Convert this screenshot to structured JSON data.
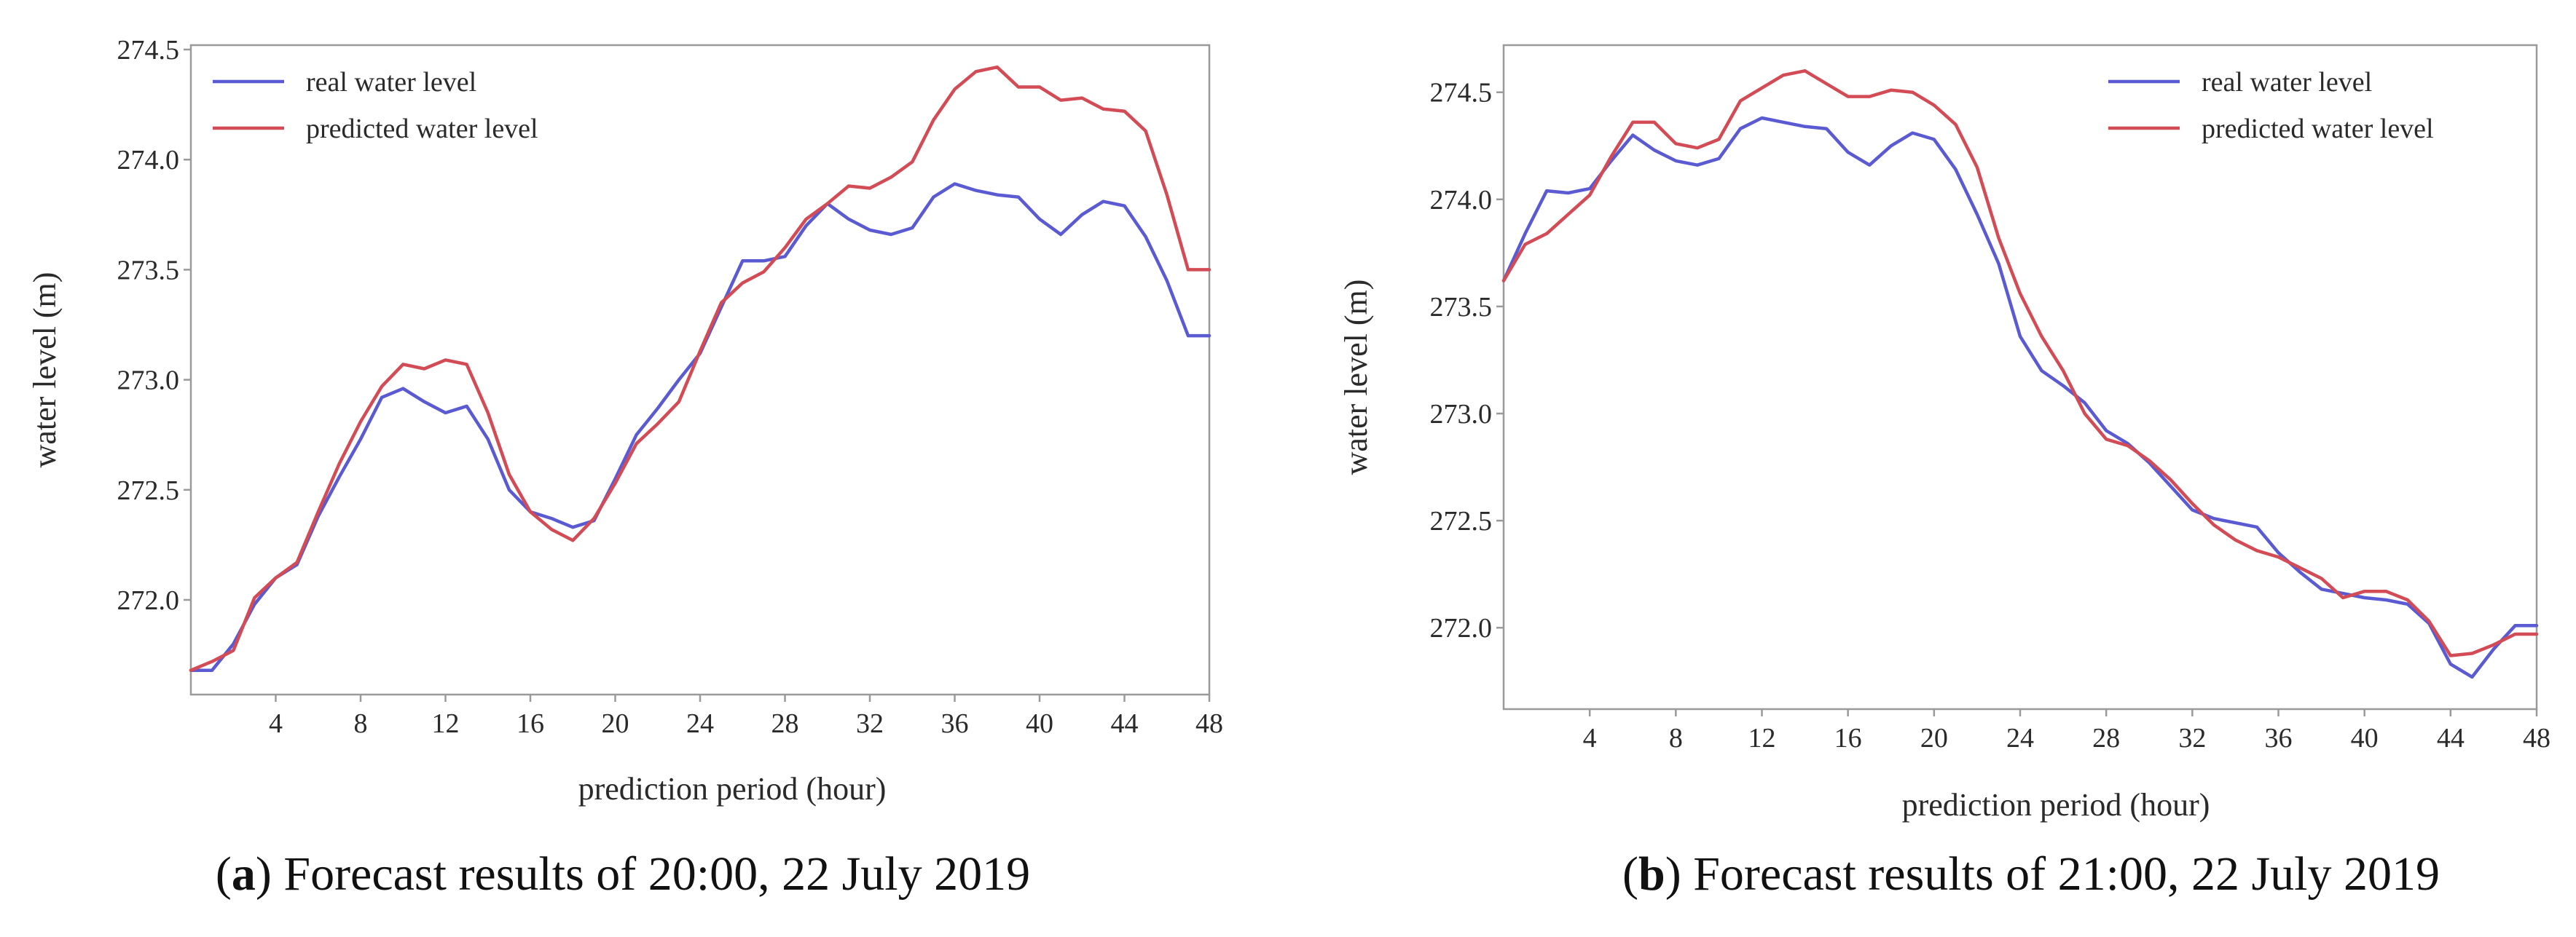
{
  "colors": {
    "real": "#5a5ad2",
    "predicted": "#d24b55"
  },
  "chart_data": [
    {
      "type": "line",
      "panel_letter": "a",
      "caption_rest": " Forecast results of 20:00, 22 July 2019",
      "xlabel": "prediction period (hour)",
      "ylabel": "water level (m)",
      "xlim": [
        0,
        48
      ],
      "ylim": [
        271.57,
        274.52
      ],
      "x_ticks": [
        4,
        8,
        12,
        16,
        20,
        24,
        28,
        32,
        36,
        40,
        44,
        48
      ],
      "y_ticks": [
        272.0,
        272.5,
        273.0,
        273.5,
        274.0,
        274.5
      ],
      "legend_position": "top-left",
      "x": [
        0,
        1,
        2,
        3,
        4,
        5,
        6,
        7,
        8,
        9,
        10,
        11,
        12,
        13,
        14,
        15,
        16,
        17,
        18,
        19,
        20,
        21,
        22,
        23,
        24,
        25,
        26,
        27,
        28,
        29,
        30,
        31,
        32,
        33,
        34,
        35,
        36,
        37,
        38,
        39,
        40,
        41,
        42,
        43,
        44,
        45,
        46,
        47,
        48
      ],
      "series": [
        {
          "name": "real water level",
          "color_key": "real",
          "values": [
            271.68,
            271.68,
            271.8,
            271.98,
            272.1,
            272.16,
            272.38,
            272.56,
            272.73,
            272.92,
            272.96,
            272.9,
            272.85,
            272.88,
            272.73,
            272.5,
            272.4,
            272.37,
            272.33,
            272.36,
            272.55,
            272.75,
            272.87,
            273.0,
            273.12,
            273.33,
            273.54,
            273.54,
            273.56,
            273.7,
            273.8,
            273.73,
            273.68,
            273.66,
            273.69,
            273.83,
            273.89,
            273.86,
            273.84,
            273.83,
            273.73,
            273.66,
            273.75,
            273.81,
            273.79,
            273.65,
            273.45,
            273.2,
            273.2
          ]
        },
        {
          "name": "predicted water level",
          "color_key": "predicted",
          "values": [
            271.68,
            271.72,
            271.77,
            272.01,
            272.1,
            272.17,
            272.4,
            272.62,
            272.81,
            272.97,
            273.07,
            273.05,
            273.09,
            273.07,
            272.85,
            272.57,
            272.4,
            272.32,
            272.27,
            272.37,
            272.53,
            272.71,
            272.8,
            272.9,
            273.13,
            273.35,
            273.44,
            273.49,
            273.6,
            273.73,
            273.8,
            273.88,
            273.87,
            273.92,
            273.99,
            274.18,
            274.32,
            274.4,
            274.42,
            274.33,
            274.33,
            274.27,
            274.28,
            274.23,
            274.22,
            274.13,
            273.84,
            273.5,
            273.5
          ]
        }
      ]
    },
    {
      "type": "line",
      "panel_letter": "b",
      "caption_rest": " Forecast results of 21:00, 22 July 2019",
      "xlabel": "prediction period (hour)",
      "ylabel": "water level (m)",
      "xlim": [
        0,
        48
      ],
      "ylim": [
        271.62,
        274.72
      ],
      "x_ticks": [
        4,
        8,
        12,
        16,
        20,
        24,
        28,
        32,
        36,
        40,
        44,
        48
      ],
      "y_ticks": [
        272.0,
        272.5,
        273.0,
        273.5,
        274.0,
        274.5
      ],
      "legend_position": "top-right",
      "x": [
        0,
        1,
        2,
        3,
        4,
        5,
        6,
        7,
        8,
        9,
        10,
        11,
        12,
        13,
        14,
        15,
        16,
        17,
        18,
        19,
        20,
        21,
        22,
        23,
        24,
        25,
        26,
        27,
        28,
        29,
        30,
        31,
        32,
        33,
        34,
        35,
        36,
        37,
        38,
        39,
        40,
        41,
        42,
        43,
        44,
        45,
        46,
        47,
        48
      ],
      "series": [
        {
          "name": "real water level",
          "color_key": "real",
          "values": [
            273.62,
            273.84,
            274.04,
            274.03,
            274.05,
            274.18,
            274.3,
            274.23,
            274.18,
            274.16,
            274.19,
            274.33,
            274.38,
            274.36,
            274.34,
            274.33,
            274.22,
            274.16,
            274.25,
            274.31,
            274.28,
            274.14,
            273.93,
            273.7,
            273.36,
            273.2,
            273.13,
            273.05,
            272.92,
            272.86,
            272.77,
            272.66,
            272.55,
            272.51,
            272.49,
            272.47,
            272.35,
            272.26,
            272.18,
            272.16,
            272.14,
            272.13,
            272.11,
            272.02,
            271.83,
            271.77,
            271.9,
            272.01,
            272.01
          ]
        },
        {
          "name": "predicted water level",
          "color_key": "predicted",
          "values": [
            273.62,
            273.79,
            273.84,
            273.93,
            274.02,
            274.2,
            274.36,
            274.36,
            274.26,
            274.24,
            274.28,
            274.46,
            274.52,
            274.58,
            274.6,
            274.54,
            274.48,
            274.48,
            274.51,
            274.5,
            274.44,
            274.35,
            274.15,
            273.82,
            273.56,
            273.36,
            273.2,
            273.0,
            272.88,
            272.85,
            272.78,
            272.69,
            272.58,
            272.48,
            272.41,
            272.36,
            272.33,
            272.28,
            272.23,
            272.14,
            272.17,
            272.17,
            272.13,
            272.03,
            271.87,
            271.88,
            271.92,
            271.97,
            271.97
          ]
        }
      ]
    }
  ]
}
